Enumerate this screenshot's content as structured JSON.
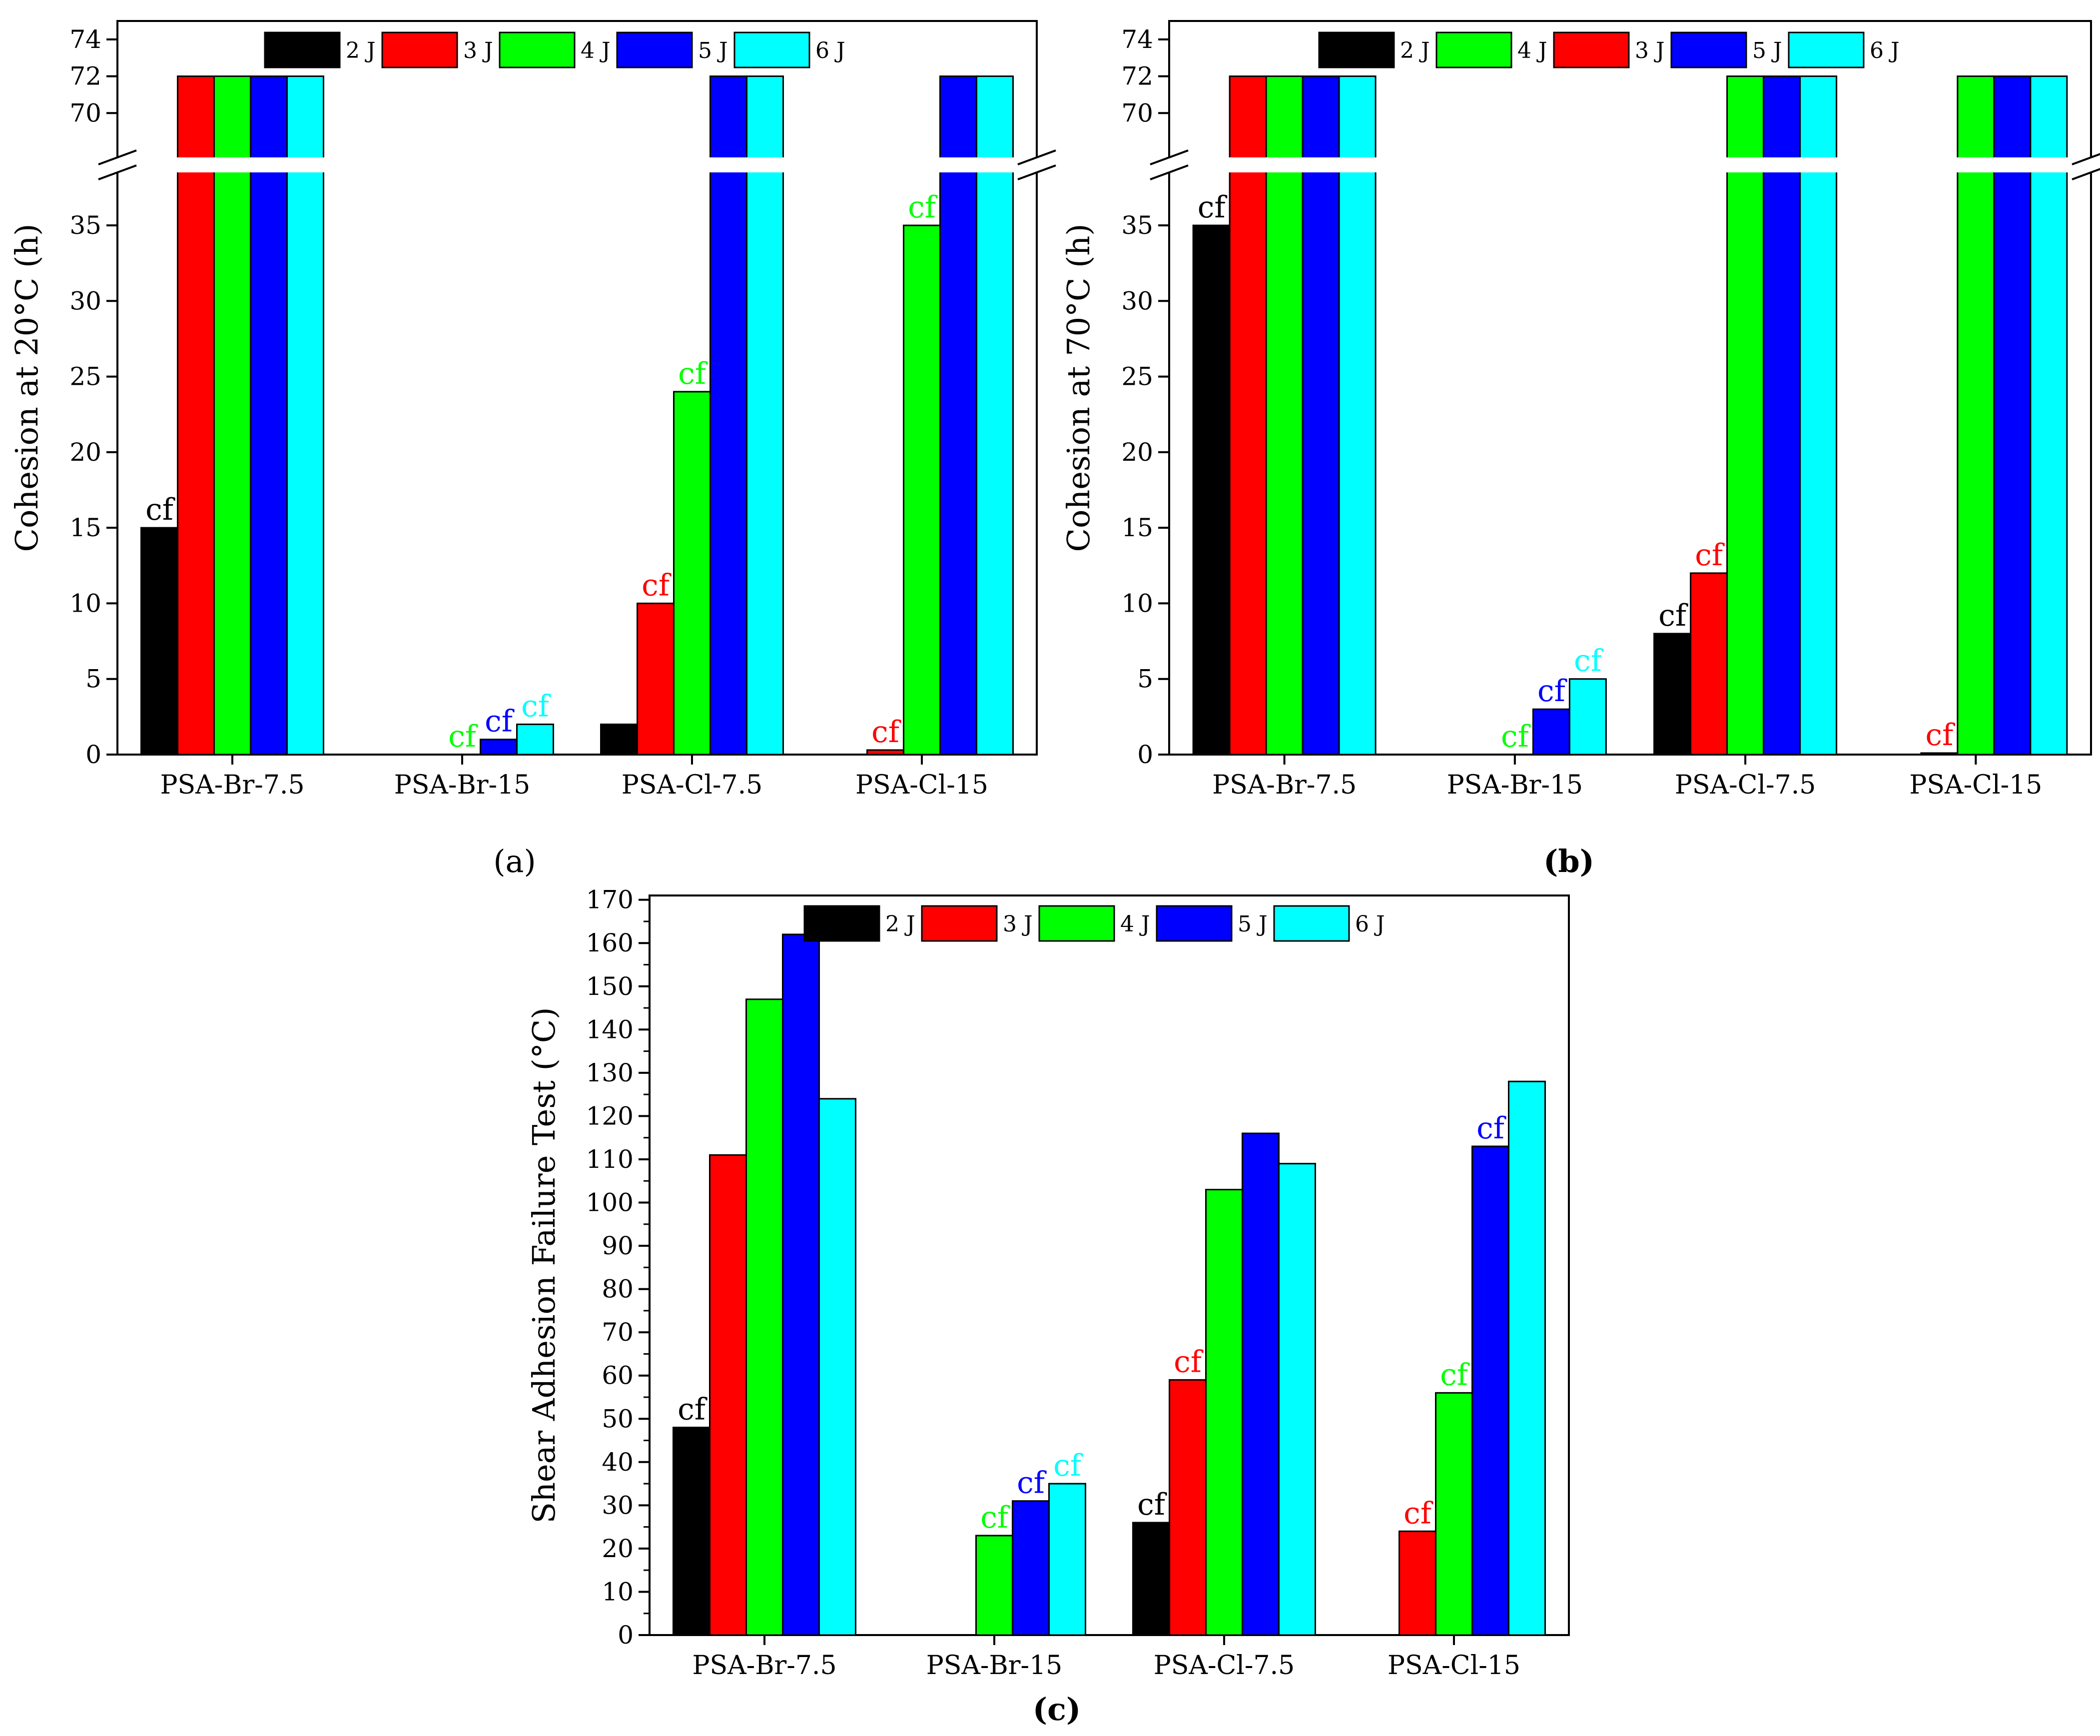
{
  "colors": {
    "2 J": "#000000",
    "3 J": "#ff0000",
    "4 J": "#00ff00",
    "5 J": "#0000ff",
    "6 J": "#00ffff"
  },
  "annotation_text": "cf",
  "chart_data": [
    {
      "type": "bar",
      "panel": "(a)",
      "ylabel": "Cohesion at 20°C (h)",
      "categories": [
        "PSA-Br-7.5",
        "PSA-Br-15",
        "PSA-Cl-7.5",
        "PSA-Cl-15"
      ],
      "legend_labels": [
        "2 J",
        "3 J",
        "4 J",
        "5 J",
        "6 J"
      ],
      "series": [
        {
          "name": "2 J",
          "values": [
            15,
            0,
            2,
            0
          ]
        },
        {
          "name": "3 J",
          "values": [
            72,
            0,
            10,
            0.3
          ]
        },
        {
          "name": "4 J",
          "values": [
            72,
            0,
            24,
            35
          ]
        },
        {
          "name": "5 J",
          "values": [
            72,
            1,
            72,
            72
          ]
        },
        {
          "name": "6 J",
          "values": [
            72,
            2,
            72,
            72
          ]
        }
      ],
      "cf_marks": [
        {
          "series": "2 J",
          "category": "PSA-Br-7.5"
        },
        {
          "series": "3 J",
          "category": "PSA-Cl-7.5"
        },
        {
          "series": "3 J",
          "category": "PSA-Cl-15"
        },
        {
          "series": "4 J",
          "category": "PSA-Br-15"
        },
        {
          "series": "4 J",
          "category": "PSA-Cl-7.5"
        },
        {
          "series": "4 J",
          "category": "PSA-Cl-15"
        },
        {
          "series": "5 J",
          "category": "PSA-Br-15"
        },
        {
          "series": "6 J",
          "category": "PSA-Br-15"
        }
      ],
      "y_ticks_lower": [
        0,
        5,
        10,
        15,
        20,
        25,
        30,
        35
      ],
      "y_ticks_upper": [
        70,
        72,
        74
      ],
      "ylim_lower": [
        0,
        39
      ],
      "ylim_upper": [
        68,
        75
      ],
      "axis_break": true
    },
    {
      "type": "bar",
      "panel": "(b)",
      "ylabel": "Cohesion at 70°C (h)",
      "categories": [
        "PSA-Br-7.5",
        "PSA-Br-15",
        "PSA-Cl-7.5",
        "PSA-Cl-15"
      ],
      "legend_labels": [
        "2 J",
        "4 J",
        "3 J",
        "5 J",
        "6 J"
      ],
      "series": [
        {
          "name": "2 J",
          "values": [
            35,
            0,
            8,
            0
          ]
        },
        {
          "name": "3 J",
          "values": [
            72,
            0,
            12,
            0.1
          ]
        },
        {
          "name": "4 J",
          "values": [
            72,
            0,
            72,
            72
          ]
        },
        {
          "name": "5 J",
          "values": [
            72,
            3,
            72,
            72
          ]
        },
        {
          "name": "6 J",
          "values": [
            72,
            5,
            72,
            72
          ]
        }
      ],
      "cf_marks": [
        {
          "series": "2 J",
          "category": "PSA-Br-7.5"
        },
        {
          "series": "2 J",
          "category": "PSA-Cl-7.5"
        },
        {
          "series": "3 J",
          "category": "PSA-Cl-7.5"
        },
        {
          "series": "3 J",
          "category": "PSA-Cl-15"
        },
        {
          "series": "4 J",
          "category": "PSA-Br-15"
        },
        {
          "series": "5 J",
          "category": "PSA-Br-15"
        },
        {
          "series": "6 J",
          "category": "PSA-Br-15"
        }
      ],
      "y_ticks_lower": [
        0,
        5,
        10,
        15,
        20,
        25,
        30,
        35
      ],
      "y_ticks_upper": [
        70,
        72,
        74
      ],
      "ylim_lower": [
        0,
        39
      ],
      "ylim_upper": [
        68,
        75
      ],
      "axis_break": true
    },
    {
      "type": "bar",
      "panel": "(c)",
      "ylabel": "Shear Adhesion Failure Test (°C)",
      "categories": [
        "PSA-Br-7.5",
        "PSA-Br-15",
        "PSA-Cl-7.5",
        "PSA-Cl-15"
      ],
      "legend_labels": [
        "2 J",
        "3 J",
        "4 J",
        "5 J",
        "6 J"
      ],
      "series": [
        {
          "name": "2 J",
          "values": [
            48,
            0,
            26,
            0
          ]
        },
        {
          "name": "3 J",
          "values": [
            111,
            0,
            59,
            24
          ]
        },
        {
          "name": "4 J",
          "values": [
            147,
            23,
            103,
            56
          ]
        },
        {
          "name": "5 J",
          "values": [
            162,
            31,
            116,
            113
          ]
        },
        {
          "name": "6 J",
          "values": [
            124,
            35,
            109,
            128
          ]
        }
      ],
      "cf_marks": [
        {
          "series": "2 J",
          "category": "PSA-Br-7.5"
        },
        {
          "series": "2 J",
          "category": "PSA-Cl-7.5"
        },
        {
          "series": "3 J",
          "category": "PSA-Cl-7.5"
        },
        {
          "series": "3 J",
          "category": "PSA-Cl-15"
        },
        {
          "series": "4 J",
          "category": "PSA-Br-15"
        },
        {
          "series": "4 J",
          "category": "PSA-Cl-15"
        },
        {
          "series": "5 J",
          "category": "PSA-Br-15"
        },
        {
          "series": "5 J",
          "category": "PSA-Cl-15"
        },
        {
          "series": "6 J",
          "category": "PSA-Br-15"
        }
      ],
      "y_ticks": [
        0,
        10,
        20,
        30,
        40,
        50,
        60,
        70,
        80,
        90,
        100,
        110,
        120,
        130,
        140,
        150,
        160,
        170
      ],
      "ylim": [
        0,
        171
      ],
      "axis_break": false
    }
  ]
}
